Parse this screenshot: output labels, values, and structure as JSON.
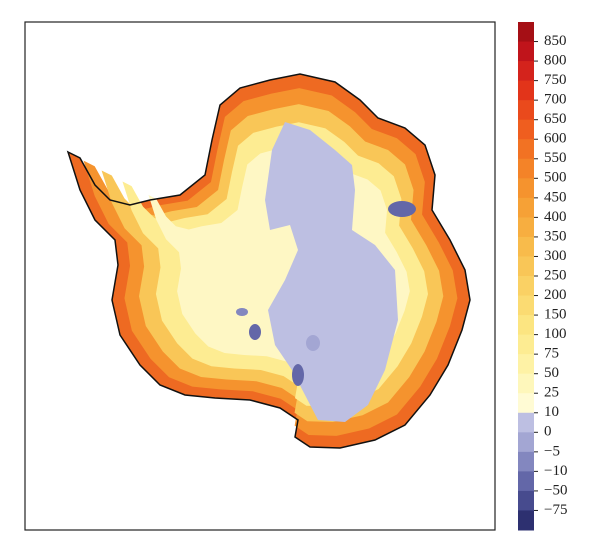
{
  "colorbar": {
    "labels": [
      "850",
      "800",
      "750",
      "700",
      "650",
      "600",
      "550",
      "500",
      "450",
      "400",
      "350",
      "300",
      "250",
      "200",
      "150",
      "100",
      "75",
      "50",
      "25",
      "10",
      "0",
      "−5",
      "−10",
      "−50",
      "−75"
    ],
    "colors": [
      "#a50f15",
      "#c0141b",
      "#d4231c",
      "#e2341a",
      "#ea4a1c",
      "#ef5e1f",
      "#f27223",
      "#f48328",
      "#f5932e",
      "#f6a136",
      "#f7ae40",
      "#f8bb4b",
      "#f9c657",
      "#fad164",
      "#fbdb72",
      "#fce581",
      "#fdec92",
      "#fef2a5",
      "#fef7bb",
      "#fffbd4",
      "#bdbfe2",
      "#a3a6d3",
      "#8387bf",
      "#6367a8",
      "#474b8e",
      "#2d3070"
    ]
  }
}
